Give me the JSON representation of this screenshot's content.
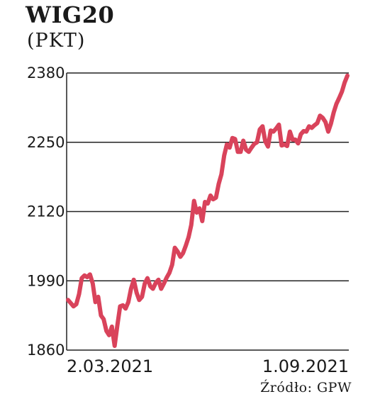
{
  "header": {
    "title": "WIG20",
    "unit": "(PKT)"
  },
  "footer": {
    "source": "Źródło: GPW"
  },
  "chart_data": {
    "type": "line",
    "title": "WIG20",
    "ylabel": "(PKT)",
    "xlabel": "",
    "ylim": [
      1860,
      2380
    ],
    "yticks": [
      1860,
      1990,
      2120,
      2250,
      2380
    ],
    "x_start_label": "2.03.2021",
    "x_end_label": "1.09.2021",
    "grid": true,
    "line_color": "#d9435b",
    "series": [
      {
        "values": [
          1954,
          1948,
          1942,
          1946,
          1965,
          1995,
          2000,
          1997,
          2002,
          1985,
          1950,
          1960,
          1925,
          1918,
          1896,
          1888,
          1904,
          1868,
          1906,
          1942,
          1944,
          1938,
          1950,
          1975,
          1992,
          1968,
          1954,
          1960,
          1985,
          1995,
          1980,
          1975,
          1986,
          1992,
          1975,
          1985,
          1996,
          2005,
          2020,
          2052,
          2045,
          2035,
          2042,
          2056,
          2072,
          2095,
          2140,
          2118,
          2126,
          2102,
          2138,
          2135,
          2150,
          2143,
          2146,
          2172,
          2190,
          2225,
          2246,
          2240,
          2258,
          2256,
          2232,
          2232,
          2253,
          2236,
          2232,
          2240,
          2247,
          2250,
          2274,
          2280,
          2252,
          2242,
          2272,
          2270,
          2276,
          2283,
          2244,
          2246,
          2243,
          2270,
          2255,
          2255,
          2248,
          2265,
          2271,
          2270,
          2280,
          2277,
          2282,
          2286,
          2300,
          2296,
          2288,
          2270,
          2285,
          2306,
          2322,
          2333,
          2345,
          2362,
          2375
        ]
      }
    ]
  }
}
